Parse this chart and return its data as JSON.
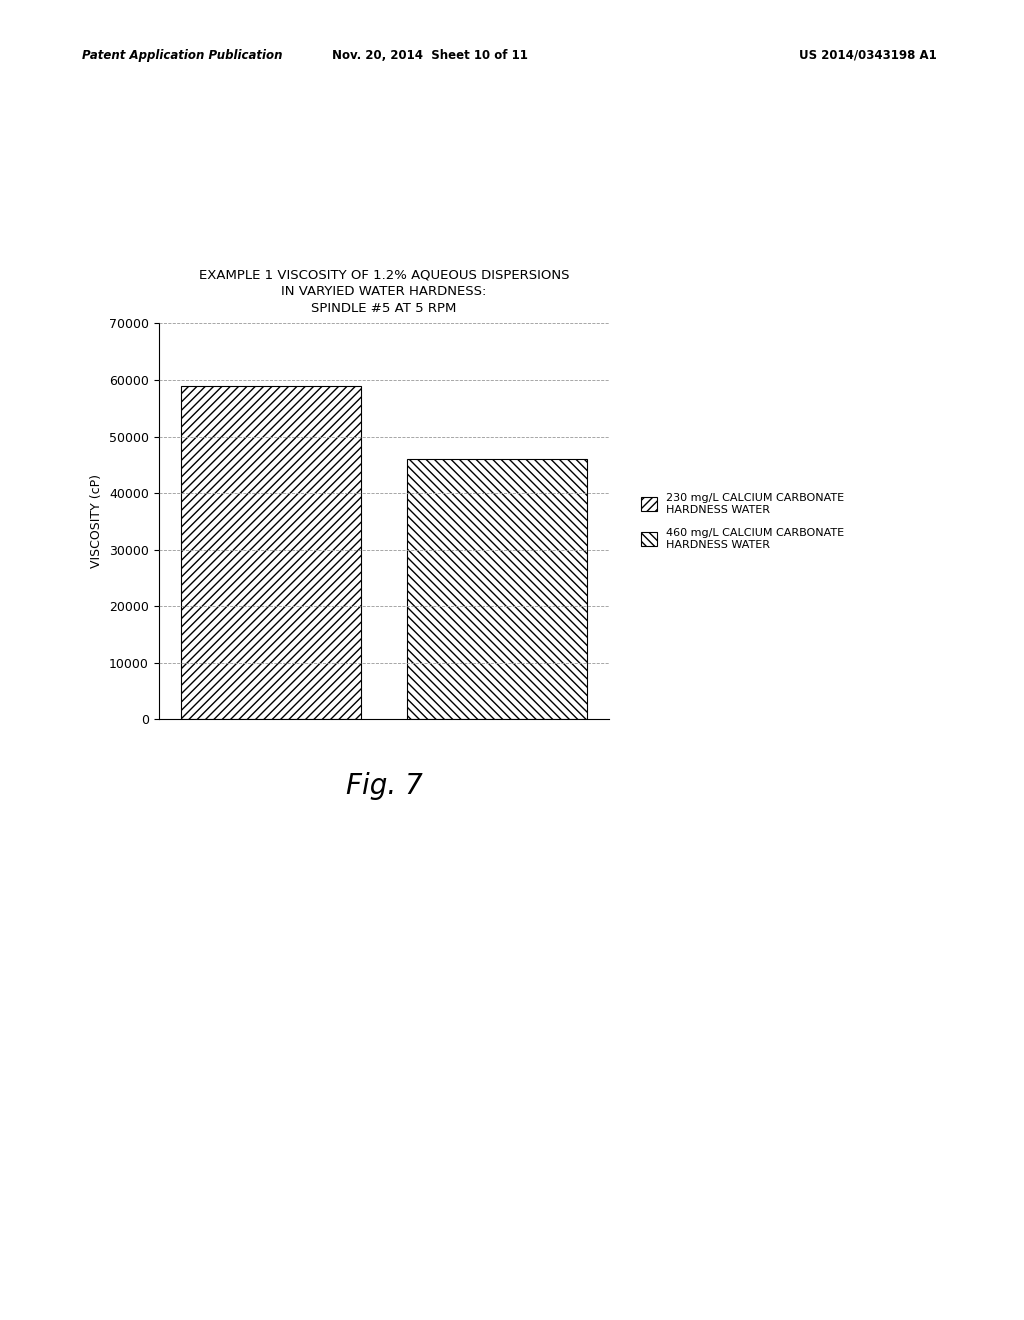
{
  "title_line1": "EXAMPLE 1 VISCOSITY OF 1.2% AQUEOUS DISPERSIONS",
  "title_line2": "IN VARYIED WATER HARDNESS:",
  "title_line3": "SPINDLE #5 AT 5 RPM",
  "ylabel": "VISCOSITY (cP)",
  "bar_values": [
    59000,
    46000
  ],
  "bar_positions": [
    0,
    1
  ],
  "ylim": [
    0,
    70000
  ],
  "yticks": [
    0,
    10000,
    20000,
    30000,
    40000,
    50000,
    60000,
    70000
  ],
  "legend_labels": [
    "230 mg/L CALCIUM CARBONATE\nHARDNESS WATER",
    "460 mg/L CALCIUM CARBONATE\nHARDNESS WATER"
  ],
  "hatch_patterns": [
    "////",
    "\\\\\\\\"
  ],
  "bar_color": "#ffffff",
  "bar_edgecolor": "#000000",
  "grid_color": "#999999",
  "background_color": "#ffffff",
  "header_left": "Patent Application Publication",
  "header_mid": "Nov. 20, 2014  Sheet 10 of 11",
  "header_right": "US 2014/0343198 A1",
  "fig_label": "Fig. 7",
  "title_fontsize": 9.5,
  "axis_fontsize": 9,
  "tick_fontsize": 9,
  "legend_fontsize": 8,
  "header_fontsize": 8.5,
  "fig_label_fontsize": 20,
  "bar_width": 0.8
}
